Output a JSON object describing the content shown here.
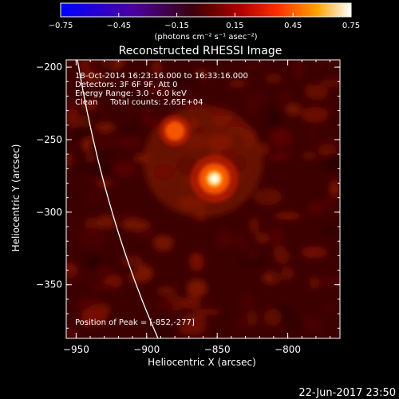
{
  "chart_data": {
    "type": "heatmap",
    "title": "Reconstructed RHESSI Image",
    "xlabel": "Heliocentric X (arcsec)",
    "ylabel": "Heliocentric Y (arcsec)",
    "xlim": [
      -957,
      -763
    ],
    "ylim": [
      -387,
      -195
    ],
    "xticks": [
      -950,
      -900,
      -850,
      -800
    ],
    "yticks": [
      -200,
      -250,
      -300,
      -350
    ],
    "xtick_labels": [
      "−950",
      "−900",
      "−850",
      "−800"
    ],
    "ytick_labels": [
      "−200",
      "−250",
      "−300",
      "−350"
    ],
    "colorbar": {
      "min": -0.75,
      "max": 0.75,
      "ticks": [
        -0.75,
        -0.45,
        -0.15,
        0.15,
        0.45,
        0.75
      ],
      "tick_labels": [
        "−0.75",
        "−0.45",
        "−0.15",
        "0.15",
        "0.45",
        "0.75"
      ],
      "unit_label": "(photons cm⁻² s⁻¹ asec⁻²)"
    },
    "sources": [
      {
        "x": -852,
        "y": -277,
        "peak": 0.75
      },
      {
        "x": -880,
        "y": -244,
        "peak": 0.42
      }
    ],
    "annotations": {
      "time_range": "18-Oct-2014 16:23:16.000 to 16:33:16.000",
      "detectors": "Detectors: 3F 6F 9F, Att 0",
      "energy_range": "Energy Range: 3.0 - 6.0 keV",
      "clean_counts": "Clean     Total counts: 2.65E+04",
      "peak_label": "Position of Peak = ",
      "peak_value": "[-852,-277]"
    },
    "footer_timestamp": "22-Jun-2017 23:50"
  }
}
